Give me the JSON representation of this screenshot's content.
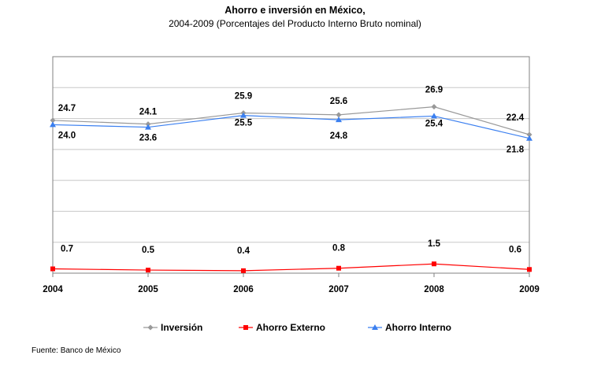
{
  "title": "Ahorro e inversión en México,",
  "subtitle": "2004-2009 (Porcentajes del Producto Interno Bruto nominal)",
  "source": "Fuente: Banco de México",
  "chart_data": {
    "type": "line",
    "categories": [
      "2004",
      "2005",
      "2006",
      "2007",
      "2008",
      "2009"
    ],
    "ylim": [
      0,
      35
    ],
    "grid": true,
    "legend": "bottom",
    "series": [
      {
        "name": "Inversión",
        "color": "#999999",
        "marker": "diamond",
        "values": [
          24.7,
          24.1,
          25.9,
          25.6,
          26.9,
          22.4
        ]
      },
      {
        "name": "Ahorro Externo",
        "color": "#ff0000",
        "marker": "square",
        "values": [
          0.7,
          0.5,
          0.4,
          0.8,
          1.5,
          0.6
        ]
      },
      {
        "name": "Ahorro Interno",
        "color": "#3a7ff0",
        "marker": "triangle",
        "values": [
          24.0,
          23.6,
          25.5,
          24.8,
          25.4,
          21.8
        ]
      }
    ]
  }
}
